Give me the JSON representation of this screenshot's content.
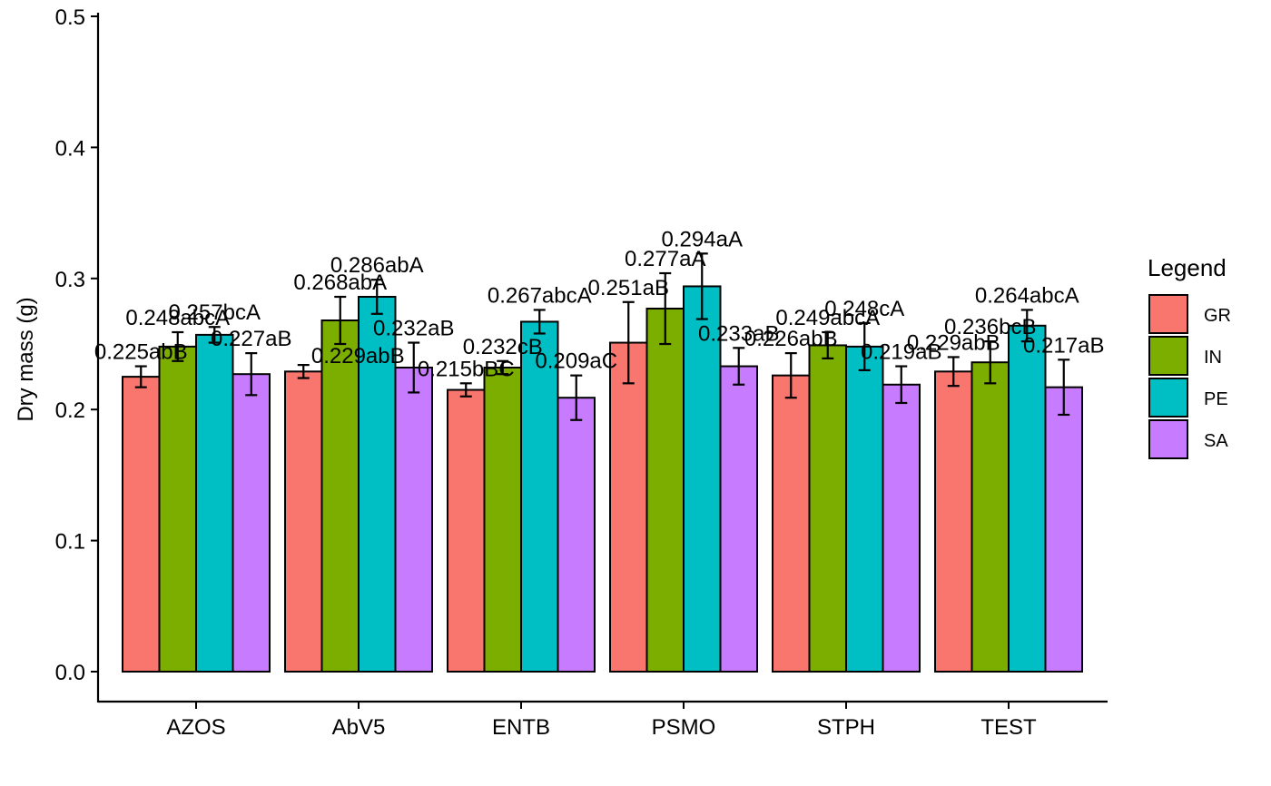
{
  "chart_data": {
    "type": "bar",
    "title": "",
    "xlabel": "",
    "ylabel": "Dry mass (g)",
    "ylim": [
      0,
      0.5
    ],
    "yticks": [
      "0.0",
      "0.1",
      "0.2",
      "0.3",
      "0.4",
      "0.5"
    ],
    "grid": false,
    "legend": {
      "title": "Legend",
      "placement": "right"
    },
    "categories": [
      "AZOS",
      "AbV5",
      "ENTB",
      "PSMO",
      "STPH",
      "TEST"
    ],
    "series": [
      {
        "name": "GR",
        "color": "#F8766D",
        "values": [
          0.225,
          0.229,
          0.215,
          0.251,
          0.226,
          0.229
        ],
        "errors": [
          0.008,
          0.005,
          0.005,
          0.031,
          0.017,
          0.011
        ],
        "labels": [
          "0.225abB",
          "",
          "0.215bBC",
          "0.251aB",
          "0.226abB",
          "0.229abB"
        ]
      },
      {
        "name": "IN",
        "color": "#7CAE00",
        "values": [
          0.248,
          0.268,
          0.232,
          0.277,
          0.249,
          0.236
        ],
        "errors": [
          0.011,
          0.018,
          0.005,
          0.027,
          0.01,
          0.016
        ],
        "labels": [
          "0.248abcA",
          "0.268abA",
          "0.232cB",
          "0.277aA",
          "0.249abcA",
          "0.236bcB"
        ]
      },
      {
        "name": "PE",
        "color": "#00BFC4",
        "values": [
          0.257,
          0.286,
          0.267,
          0.294,
          0.248,
          0.264
        ],
        "errors": [
          0.006,
          0.013,
          0.009,
          0.025,
          0.018,
          0.012
        ],
        "labels": [
          "0.257bcA",
          "0.286abA",
          "0.267abcA",
          "0.294aA",
          "0.248cA",
          "0.264abcA"
        ]
      },
      {
        "name": "SA",
        "color": "#C77CFF",
        "values": [
          0.227,
          0.232,
          0.209,
          0.233,
          0.219,
          0.217
        ],
        "errors": [
          0.016,
          0.019,
          0.017,
          0.014,
          0.014,
          0.021
        ],
        "labels": [
          "0.227aB",
          "0.232aB",
          "0.209aC",
          "0.233aB",
          "0.219aB",
          "0.217aB"
        ]
      }
    ],
    "extra_labels": [
      {
        "category": "AbV5",
        "series": "GR",
        "text": "0.229abB"
      }
    ]
  }
}
